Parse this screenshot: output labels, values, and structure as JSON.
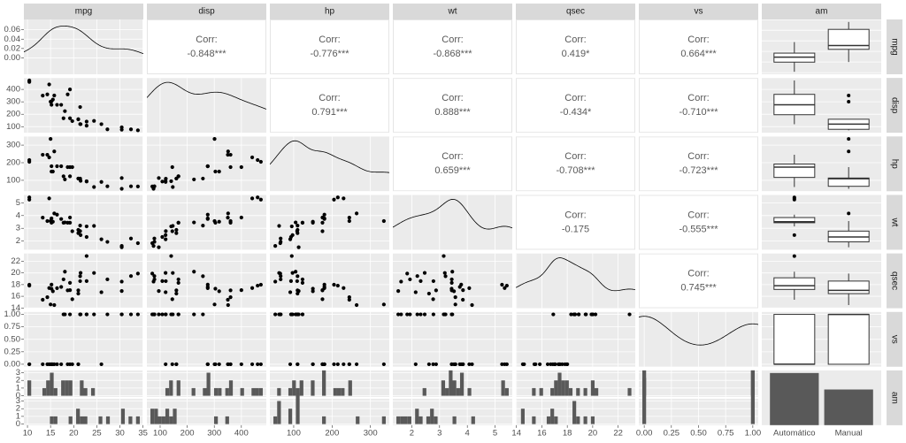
{
  "chart_data": {
    "type": "pairs",
    "variables": [
      "mpg",
      "disp",
      "hp",
      "wt",
      "qsec",
      "vs",
      "am"
    ],
    "am_levels": [
      "Automático",
      "Manual"
    ],
    "data": {
      "mpg": [
        21,
        21,
        22.8,
        21.4,
        18.7,
        18.1,
        14.3,
        24.4,
        22.8,
        19.2,
        17.8,
        16.4,
        17.3,
        15.2,
        10.4,
        10.4,
        14.7,
        32.4,
        30.4,
        33.9,
        21.5,
        15.5,
        15.2,
        13.3,
        19.2,
        27.3,
        26,
        30.4,
        15.8,
        19.7,
        15,
        21.4
      ],
      "disp": [
        160,
        160,
        108,
        258,
        360,
        225,
        360,
        146.7,
        140.8,
        167.6,
        167.6,
        275.8,
        275.8,
        275.8,
        472,
        460,
        440,
        78.7,
        75.7,
        71.1,
        120.1,
        318,
        304,
        350,
        400,
        79,
        120.3,
        95.1,
        351,
        145,
        301,
        121
      ],
      "hp": [
        110,
        110,
        93,
        110,
        175,
        105,
        245,
        62,
        95,
        123,
        123,
        180,
        180,
        180,
        205,
        215,
        230,
        66,
        52,
        65,
        97,
        150,
        150,
        245,
        175,
        66,
        91,
        113,
        264,
        175,
        335,
        109
      ],
      "wt": [
        2.62,
        2.875,
        2.32,
        3.215,
        3.44,
        3.46,
        3.57,
        3.19,
        3.15,
        3.44,
        3.44,
        4.07,
        3.73,
        3.78,
        5.25,
        5.424,
        5.345,
        2.2,
        1.615,
        1.835,
        2.465,
        3.52,
        3.435,
        3.84,
        3.845,
        1.935,
        2.14,
        1.513,
        4.17,
        2.77,
        3.57,
        2.78
      ],
      "qsec": [
        16.46,
        17.02,
        18.61,
        19.44,
        17.02,
        20.22,
        15.84,
        20,
        22.9,
        18.3,
        18.9,
        17.4,
        17.6,
        18,
        17.98,
        17.82,
        17.42,
        19.47,
        18.52,
        19.9,
        20.01,
        16.87,
        17.3,
        15.41,
        17.05,
        18.9,
        16.7,
        16.9,
        14.5,
        15.5,
        14.6,
        18.6
      ],
      "vs": [
        0,
        0,
        1,
        1,
        0,
        1,
        0,
        1,
        1,
        1,
        1,
        0,
        0,
        0,
        0,
        0,
        0,
        1,
        1,
        1,
        1,
        0,
        0,
        0,
        0,
        1,
        0,
        1,
        0,
        0,
        0,
        1
      ],
      "am": [
        1,
        1,
        1,
        0,
        0,
        0,
        0,
        0,
        0,
        0,
        0,
        0,
        0,
        0,
        0,
        0,
        0,
        1,
        1,
        1,
        0,
        0,
        0,
        0,
        0,
        1,
        1,
        1,
        1,
        1,
        1,
        1
      ]
    },
    "axes": {
      "mpg": {
        "lim": [
          9.225,
          35.075
        ],
        "ticks": [
          10,
          15,
          20,
          25,
          30,
          35
        ]
      },
      "disp": {
        "lim": [
          51.055,
          492.045
        ],
        "ticks": [
          100,
          200,
          300,
          400
        ]
      },
      "hp": {
        "lim": [
          37.85,
          349.15
        ],
        "ticks": [
          100,
          200,
          300
        ]
      },
      "wt": {
        "lim": [
          1.31745,
          5.61955
        ],
        "ticks": [
          2,
          3,
          4,
          5
        ]
      },
      "qsec": {
        "lim": [
          13.95,
          23.35
        ],
        "ticks": [
          14,
          16,
          18,
          20,
          22
        ]
      },
      "vs": {
        "lim": [
          -0.05,
          1.05
        ],
        "ticks": [
          {
            "value": 0,
            "label": "0.00"
          },
          {
            "value": 0.25,
            "label": "0.25"
          },
          {
            "value": 0.5,
            "label": "0.50"
          },
          {
            "value": 0.75,
            "label": "0.75"
          },
          {
            "value": 1,
            "label": "1.00"
          }
        ]
      }
    },
    "density_ylim": [
      -0.035,
      0.082
    ],
    "density_yticks": [
      {
        "value": 0,
        "label": "0.00"
      },
      {
        "value": 0.02,
        "label": "0.02"
      },
      {
        "value": 0.04,
        "label": "0.04"
      },
      {
        "value": 0.06,
        "label": "0.06"
      }
    ],
    "count_ylim": [
      -0.15,
      3.3
    ],
    "count_yticks": [
      0,
      1,
      2,
      3
    ],
    "corr_label": "Corr:",
    "correlations": {
      "mpg": {
        "disp": "-0.848***",
        "hp": "-0.776***",
        "wt": "-0.868***",
        "qsec": "0.419*",
        "vs": "0.664***"
      },
      "disp": {
        "hp": "0.791***",
        "wt": "0.888***",
        "qsec": "-0.434*",
        "vs": "-0.710***"
      },
      "hp": {
        "wt": "0.659***",
        "qsec": "-0.708***",
        "vs": "-0.723***"
      },
      "wt": {
        "qsec": "-0.175",
        "vs": "-0.555***"
      },
      "qsec": {
        "vs": "0.745***"
      }
    }
  }
}
